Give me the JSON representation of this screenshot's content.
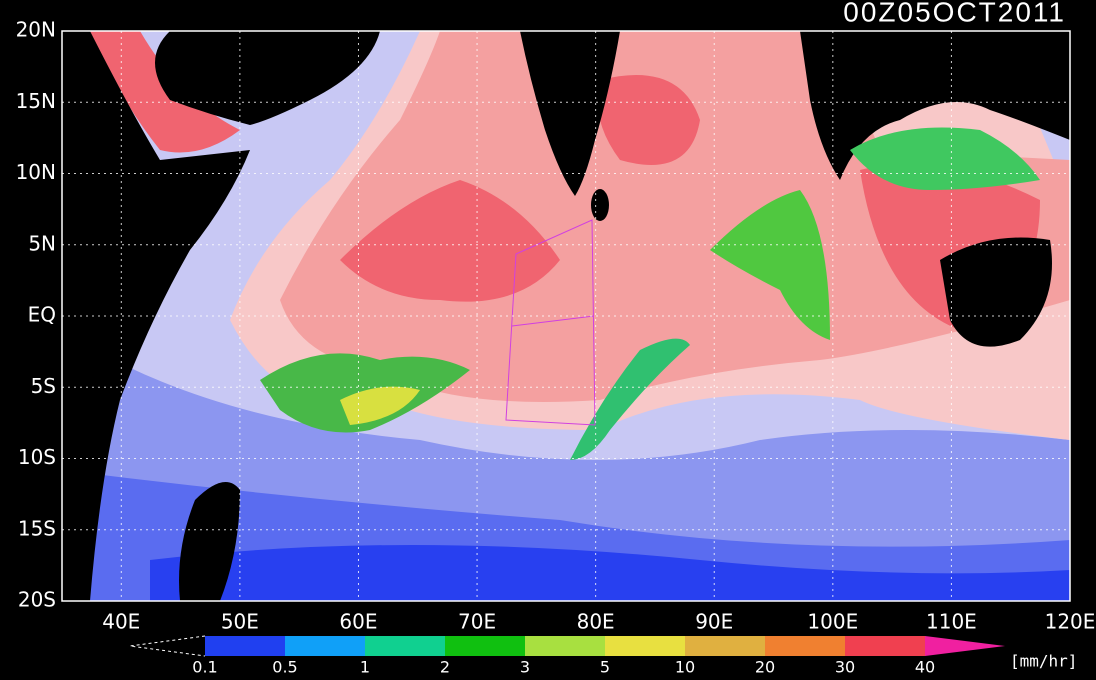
{
  "map": {
    "title": "00Z05OCT2011",
    "lat_labels": [
      "20N",
      "15N",
      "10N",
      "5N",
      "EQ",
      "5S",
      "10S",
      "15S",
      "20S"
    ],
    "lon_labels": [
      "40E",
      "50E",
      "60E",
      "70E",
      "80E",
      "90E",
      "100E",
      "110E",
      "120E"
    ],
    "colorbar": {
      "labels": [
        "0.1",
        "0.5",
        "1",
        "2",
        "3",
        "5",
        "10",
        "20",
        "30",
        "40"
      ],
      "colors": [
        "#2040f0",
        "#10a0f8",
        "#10d090",
        "#10c010",
        "#a8e040",
        "#e8e040",
        "#e0b040",
        "#f08030",
        "#f04050"
      ],
      "over_color": "#f020a0",
      "unit": "[mm/hr]"
    }
  }
}
